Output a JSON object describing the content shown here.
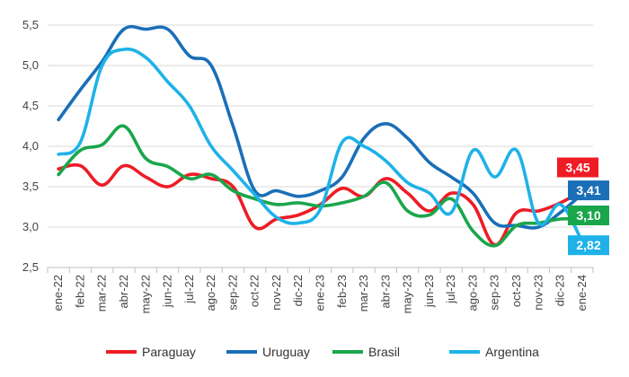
{
  "chart_data": {
    "type": "line",
    "title": "",
    "xlabel": "",
    "ylabel": "",
    "ylim": [
      2.5,
      5.5
    ],
    "y_ticks": [
      "2,5",
      "3,0",
      "3,5",
      "4,0",
      "4,5",
      "5,0",
      "5,5"
    ],
    "y_tick_values": [
      2.5,
      3.0,
      3.5,
      4.0,
      4.5,
      5.0,
      5.5
    ],
    "x_tick_labels": [
      "ene-22",
      "feb-22",
      "mar-22",
      "abr-22",
      "may-22",
      "jun-22",
      "jul-22",
      "ago-22",
      "sep-22",
      "oct-22",
      "nov-22",
      "dic-22",
      "ene-23",
      "feb-23",
      "mar-23",
      "abr-23",
      "may-23",
      "jun-23",
      "jul-23",
      "ago-23",
      "sep-23",
      "oct-23",
      "nov-23",
      "dic-23",
      "ene-24"
    ],
    "grid": true,
    "legend_position": "bottom",
    "series": [
      {
        "name": "Paraguay",
        "color": "#ee1c25",
        "end_label": "3,45",
        "values": [
          3.72,
          3.76,
          3.52,
          3.76,
          3.62,
          3.5,
          3.65,
          3.6,
          3.5,
          3.0,
          3.1,
          3.15,
          3.28,
          3.48,
          3.38,
          3.6,
          3.42,
          3.2,
          3.42,
          3.28,
          2.78,
          3.18,
          3.2,
          3.3,
          3.45
        ]
      },
      {
        "name": "Uruguay",
        "color": "#1a6fb7",
        "end_label": "3,41",
        "values": [
          4.33,
          4.7,
          5.05,
          5.45,
          5.45,
          5.45,
          5.12,
          5.0,
          4.25,
          3.45,
          3.45,
          3.38,
          3.45,
          3.62,
          4.1,
          4.28,
          4.1,
          3.8,
          3.62,
          3.42,
          3.05,
          3.02,
          3.0,
          3.18,
          3.41
        ]
      },
      {
        "name": "Brasil",
        "color": "#1aa64b",
        "end_label": "3,10",
        "values": [
          3.65,
          3.95,
          4.02,
          4.25,
          3.85,
          3.75,
          3.6,
          3.65,
          3.45,
          3.35,
          3.28,
          3.3,
          3.26,
          3.3,
          3.38,
          3.55,
          3.2,
          3.15,
          3.35,
          2.95,
          2.77,
          3.02,
          3.05,
          3.1,
          3.1
        ]
      },
      {
        "name": "Argentina",
        "color": "#1eb2e8",
        "end_label": "2,82",
        "values": [
          3.9,
          4.05,
          5.0,
          5.2,
          5.1,
          4.8,
          4.5,
          4.0,
          3.7,
          3.4,
          3.12,
          3.05,
          3.22,
          4.05,
          4.0,
          3.82,
          3.55,
          3.42,
          3.18,
          3.95,
          3.62,
          3.95,
          3.05,
          3.28,
          2.82
        ]
      }
    ]
  }
}
